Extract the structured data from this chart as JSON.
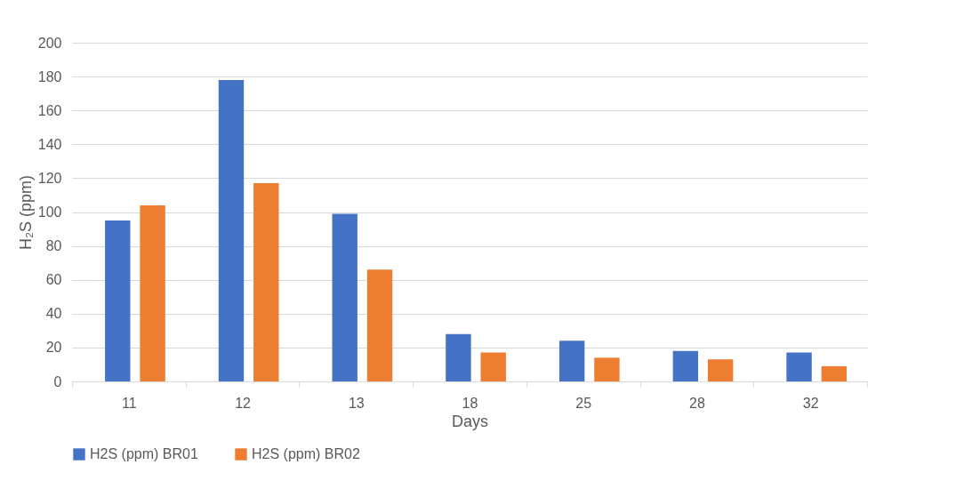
{
  "chart_data": {
    "type": "bar",
    "xlabel": "Days",
    "ylabel": "H₂S (ppm)",
    "categories": [
      "11",
      "12",
      "13",
      "18",
      "25",
      "28",
      "32"
    ],
    "series": [
      {
        "name": "H2S (ppm) BR01",
        "color": "#4472c4",
        "values": [
          95,
          178,
          99,
          28,
          24,
          18,
          17
        ]
      },
      {
        "name": "H2S (ppm) BR02",
        "color": "#ed7d31",
        "values": [
          104,
          117,
          66,
          17,
          14,
          13,
          9
        ]
      }
    ],
    "ylim": [
      0,
      200
    ],
    "yticks": [
      0,
      20,
      40,
      60,
      80,
      100,
      120,
      140,
      160,
      180,
      200
    ],
    "grid": "y",
    "legend": "bottom"
  }
}
